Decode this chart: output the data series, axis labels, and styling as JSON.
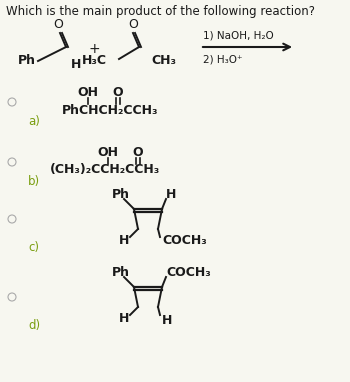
{
  "title": "Which is the main product of the following reaction?",
  "bg_color": "#f7f7f0",
  "text_color": "#1a1a1a",
  "label_color": "#7a9e10",
  "cond1": "1) NaOH, H₂O",
  "cond2": "2) H₃O⁺",
  "opt_a": "a)",
  "opt_b": "b)",
  "opt_c": "c)",
  "opt_d": "d)",
  "formula_a1": "OH",
  "formula_a2": "O",
  "formula_a3": "PhCHCH₂CCH₃",
  "formula_b1": "OH",
  "formula_b2": "O",
  "formula_b3": "(CH₃)₂CCH₂CCH₃",
  "ph": "Ph",
  "h": "H",
  "coch3": "COCH₃",
  "r1_ph": "Ph",
  "r1_h": "H",
  "r2_h3c": "H₃C",
  "r2_ch3": "CH₃",
  "r2_o": "O",
  "r1_o": "O"
}
